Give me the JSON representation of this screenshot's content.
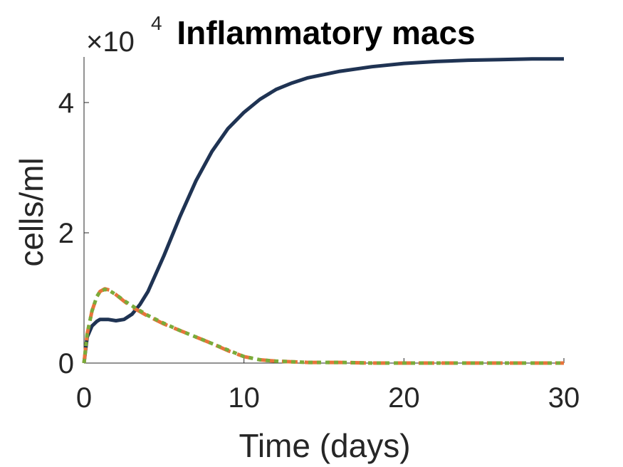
{
  "chart_data": {
    "type": "line",
    "title": "Inflammatory macs",
    "xlabel": "Time (days)",
    "ylabel": "cells/ml",
    "xlim": [
      0,
      30
    ],
    "ylim": [
      0,
      4.7
    ],
    "y_multiplier": "×10",
    "y_multiplier_exponent": "4",
    "x_ticks": [
      0,
      10,
      20,
      30
    ],
    "x_tick_labels": [
      "0",
      "10",
      "20",
      "30"
    ],
    "y_ticks": [
      0,
      2,
      4
    ],
    "y_tick_labels": [
      "0",
      "2",
      "4"
    ],
    "grid": false,
    "legend": "none",
    "series": [
      {
        "color": "#1f3353",
        "style": "solid",
        "x": [
          0,
          0.2,
          0.5,
          0.8,
          1,
          1.5,
          2,
          2.5,
          3,
          3.5,
          4,
          5,
          6,
          7,
          8,
          9,
          10,
          11,
          12,
          13,
          14,
          16,
          18,
          20,
          22,
          24,
          26,
          28,
          30
        ],
        "y": [
          0,
          0.4,
          0.57,
          0.64,
          0.67,
          0.67,
          0.65,
          0.67,
          0.75,
          0.9,
          1.1,
          1.65,
          2.25,
          2.8,
          3.25,
          3.6,
          3.85,
          4.05,
          4.2,
          4.3,
          4.38,
          4.48,
          4.55,
          4.6,
          4.63,
          4.65,
          4.66,
          4.67,
          4.67
        ]
      },
      {
        "color": "#e8743b",
        "style": "dashed",
        "x": [
          0,
          0.2,
          0.5,
          0.8,
          1,
          1.3,
          1.6,
          2,
          2.5,
          3,
          4,
          5,
          6,
          7,
          8,
          9,
          10,
          11,
          12,
          13,
          14,
          16,
          18,
          20,
          25,
          30
        ],
        "y": [
          0,
          0.45,
          0.8,
          1.02,
          1.1,
          1.14,
          1.12,
          1.05,
          0.95,
          0.86,
          0.72,
          0.6,
          0.5,
          0.4,
          0.3,
          0.19,
          0.1,
          0.05,
          0.03,
          0.02,
          0.01,
          0.01,
          0.0,
          0.0,
          0.0,
          0.0
        ]
      },
      {
        "color": "#7aab3a",
        "style": "dotted",
        "x": [
          0,
          0.2,
          0.5,
          0.8,
          1,
          1.3,
          1.6,
          2,
          2.5,
          3,
          4,
          5,
          6,
          7,
          8,
          9,
          10,
          11,
          12,
          13,
          14,
          16,
          18,
          20,
          25,
          30
        ],
        "y": [
          0,
          0.45,
          0.8,
          1.02,
          1.1,
          1.13,
          1.11,
          1.05,
          0.96,
          0.88,
          0.73,
          0.61,
          0.5,
          0.4,
          0.3,
          0.2,
          0.1,
          0.05,
          0.03,
          0.02,
          0.01,
          0.01,
          0.0,
          0.0,
          0.0,
          0.0
        ]
      }
    ]
  }
}
